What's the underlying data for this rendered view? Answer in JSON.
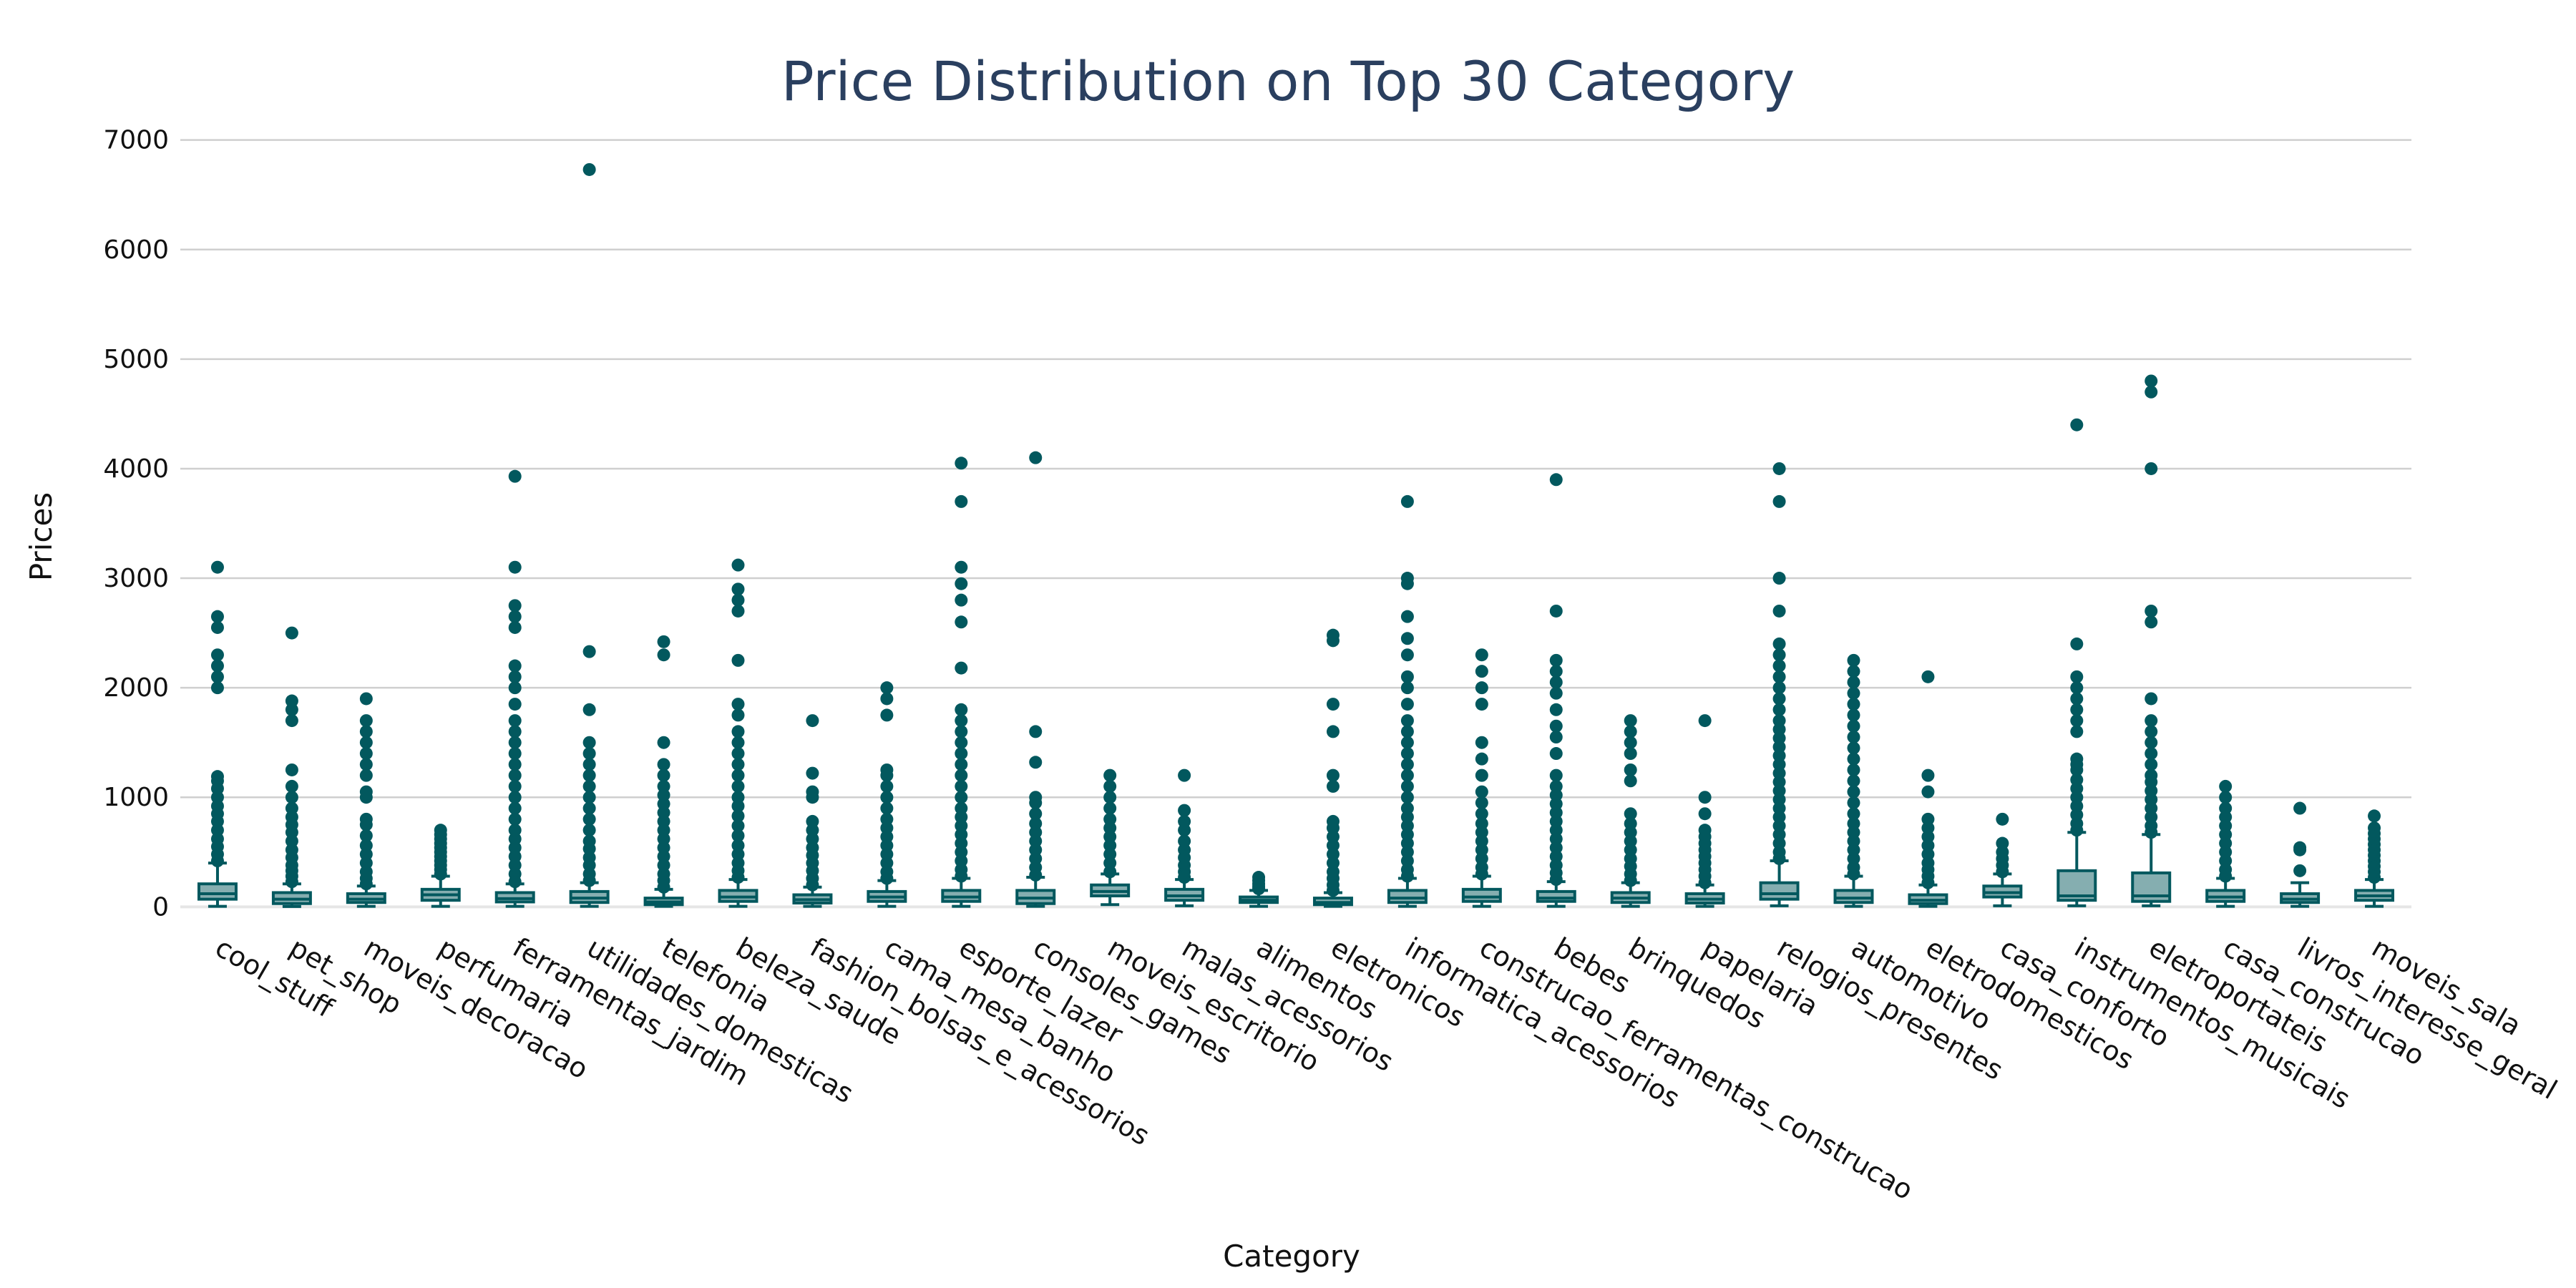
{
  "chart_data": {
    "type": "box",
    "title": "Price Distribution on Top 30 Category",
    "xlabel": "Category",
    "ylabel": "Prices",
    "ylim": [
      -50,
      7050
    ],
    "yticks": [
      0,
      1000,
      2000,
      3000,
      4000,
      5000,
      6000,
      7000
    ],
    "grid": true,
    "legend": "none",
    "colors": {
      "line": "#02585e",
      "fill": "#85aeb0",
      "text": "#2a3f5f"
    },
    "categories": [
      "cool_stuff",
      "pet_shop",
      "moveis_decoracao",
      "perfumaria",
      "ferramentas_jardim",
      "utilidades_domesticas",
      "telefonia",
      "beleza_saude",
      "fashion_bolsas_e_acessorios",
      "cama_mesa_banho",
      "esporte_lazer",
      "consoles_games",
      "moveis_escritorio",
      "malas_acessorios",
      "alimentos",
      "eletronicos",
      "informatica_acessorios",
      "construcao_ferramentas_construcao",
      "bebes",
      "brinquedos",
      "papelaria",
      "relogios_presentes",
      "automotivo",
      "eletrodomesticos",
      "casa_conforto",
      "instrumentos_musicais",
      "eletroportateis",
      "casa_construcao",
      "livros_interesse_geral",
      "moveis_sala"
    ],
    "boxes": [
      {
        "min": 5,
        "q1": 70,
        "median": 120,
        "q3": 210,
        "upper_fence": 400,
        "outliers": [
          420,
          480,
          550,
          620,
          700,
          780,
          850,
          920,
          1000,
          1080,
          1150,
          1190,
          2000,
          2100,
          2200,
          2300,
          2550,
          2650,
          3100
        ]
      },
      {
        "min": 3,
        "q1": 30,
        "median": 70,
        "q3": 130,
        "upper_fence": 210,
        "outliers": [
          230,
          280,
          330,
          380,
          450,
          520,
          600,
          680,
          750,
          820,
          900,
          1000,
          1100,
          1250,
          1700,
          1800,
          1880,
          2500
        ]
      },
      {
        "min": 5,
        "q1": 40,
        "median": 70,
        "q3": 120,
        "upper_fence": 190,
        "outliers": [
          210,
          260,
          320,
          400,
          480,
          560,
          650,
          750,
          800,
          1000,
          1050,
          1200,
          1300,
          1400,
          1500,
          1600,
          1700,
          1900
        ]
      },
      {
        "min": 5,
        "q1": 60,
        "median": 110,
        "q3": 160,
        "upper_fence": 280,
        "outliers": [
          300,
          340,
          380,
          420,
          460,
          500,
          540,
          580,
          620,
          660,
          700
        ]
      },
      {
        "min": 5,
        "q1": 45,
        "median": 75,
        "q3": 130,
        "upper_fence": 210,
        "outliers": [
          230,
          300,
          380,
          460,
          540,
          620,
          700,
          800,
          900,
          1000,
          1100,
          1200,
          1300,
          1400,
          1500,
          1600,
          1700,
          1850,
          2000,
          2100,
          2200,
          2550,
          2650,
          2750,
          3100,
          3930
        ]
      },
      {
        "min": 5,
        "q1": 40,
        "median": 80,
        "q3": 140,
        "upper_fence": 220,
        "outliers": [
          240,
          300,
          380,
          450,
          530,
          600,
          700,
          800,
          900,
          1000,
          1100,
          1200,
          1300,
          1400,
          1500,
          1800,
          2330,
          6730
        ]
      },
      {
        "min": 5,
        "q1": 20,
        "median": 45,
        "q3": 80,
        "upper_fence": 160,
        "outliers": [
          180,
          240,
          300,
          380,
          460,
          540,
          620,
          700,
          780,
          860,
          940,
          1020,
          1100,
          1200,
          1300,
          1500,
          2300,
          2420
        ]
      },
      {
        "min": 5,
        "q1": 50,
        "median": 90,
        "q3": 150,
        "upper_fence": 250,
        "outliers": [
          270,
          330,
          400,
          480,
          560,
          650,
          740,
          830,
          920,
          1000,
          1100,
          1200,
          1300,
          1400,
          1500,
          1600,
          1750,
          1850,
          2250,
          2700,
          2800,
          2900,
          3120
        ]
      },
      {
        "min": 5,
        "q1": 35,
        "median": 65,
        "q3": 110,
        "upper_fence": 180,
        "outliers": [
          200,
          260,
          330,
          400,
          470,
          540,
          620,
          700,
          780,
          1000,
          1050,
          1220,
          1700
        ]
      },
      {
        "min": 5,
        "q1": 50,
        "median": 90,
        "q3": 140,
        "upper_fence": 240,
        "outliers": [
          260,
          320,
          400,
          480,
          560,
          640,
          720,
          800,
          900,
          1000,
          1100,
          1200,
          1250,
          1750,
          1900,
          2000
        ]
      },
      {
        "min": 5,
        "q1": 50,
        "median": 90,
        "q3": 150,
        "upper_fence": 260,
        "outliers": [
          280,
          340,
          420,
          500,
          580,
          660,
          740,
          820,
          900,
          1000,
          1100,
          1200,
          1300,
          1400,
          1500,
          1600,
          1700,
          1800,
          2180,
          2600,
          2800,
          2950,
          3100,
          3700,
          4050
        ]
      },
      {
        "min": 5,
        "q1": 30,
        "median": 80,
        "q3": 150,
        "upper_fence": 270,
        "outliers": [
          290,
          360,
          440,
          520,
          600,
          680,
          760,
          850,
          950,
          1000,
          1320,
          1600,
          4100
        ]
      },
      {
        "min": 20,
        "q1": 100,
        "median": 140,
        "q3": 200,
        "upper_fence": 300,
        "outliers": [
          320,
          400,
          480,
          560,
          640,
          720,
          800,
          900,
          1000,
          1100,
          1200
        ]
      },
      {
        "min": 10,
        "q1": 60,
        "median": 100,
        "q3": 160,
        "upper_fence": 250,
        "outliers": [
          270,
          320,
          380,
          450,
          520,
          600,
          700,
          780,
          880,
          1200
        ]
      },
      {
        "min": 5,
        "q1": 40,
        "median": 60,
        "q3": 90,
        "upper_fence": 150,
        "outliers": [
          165,
          185,
          210,
          240,
          270
        ]
      },
      {
        "min": 5,
        "q1": 20,
        "median": 40,
        "q3": 80,
        "upper_fence": 130,
        "outliers": [
          150,
          200,
          260,
          320,
          400,
          480,
          560,
          640,
          720,
          780,
          1100,
          1200,
          1600,
          1850,
          2430,
          2480
        ]
      },
      {
        "min": 5,
        "q1": 40,
        "median": 80,
        "q3": 150,
        "upper_fence": 260,
        "outliers": [
          280,
          340,
          420,
          500,
          580,
          660,
          740,
          820,
          900,
          1000,
          1100,
          1200,
          1300,
          1400,
          1500,
          1600,
          1700,
          1850,
          2000,
          2100,
          2300,
          2450,
          2650,
          2950,
          3000,
          3700
        ]
      },
      {
        "min": 5,
        "q1": 50,
        "median": 90,
        "q3": 160,
        "upper_fence": 280,
        "outliers": [
          300,
          360,
          440,
          520,
          600,
          680,
          760,
          850,
          950,
          1050,
          1200,
          1350,
          1500,
          1850,
          2000,
          2150,
          2300
        ]
      },
      {
        "min": 5,
        "q1": 50,
        "median": 80,
        "q3": 140,
        "upper_fence": 230,
        "outliers": [
          250,
          310,
          380,
          460,
          540,
          620,
          700,
          780,
          860,
          940,
          1020,
          1100,
          1200,
          1400,
          1550,
          1650,
          1800,
          1950,
          2050,
          2150,
          2250,
          2700,
          3900
        ]
      },
      {
        "min": 5,
        "q1": 40,
        "median": 80,
        "q3": 130,
        "upper_fence": 220,
        "outliers": [
          240,
          300,
          370,
          440,
          520,
          600,
          680,
          760,
          850,
          1150,
          1250,
          1400,
          1500,
          1600,
          1700
        ]
      },
      {
        "min": 5,
        "q1": 35,
        "median": 70,
        "q3": 120,
        "upper_fence": 200,
        "outliers": [
          220,
          280,
          340,
          400,
          460,
          520,
          580,
          640,
          700,
          850,
          1000,
          1700
        ]
      },
      {
        "min": 10,
        "q1": 70,
        "median": 120,
        "q3": 220,
        "upper_fence": 420,
        "outliers": [
          440,
          500,
          580,
          660,
          740,
          820,
          900,
          980,
          1060,
          1140,
          1220,
          1300,
          1380,
          1460,
          1540,
          1620,
          1700,
          1800,
          1900,
          2000,
          2100,
          2200,
          2300,
          2400,
          2700,
          3000,
          3700,
          4000
        ]
      },
      {
        "min": 5,
        "q1": 40,
        "median": 80,
        "q3": 150,
        "upper_fence": 280,
        "outliers": [
          300,
          360,
          440,
          520,
          600,
          680,
          760,
          850,
          950,
          1050,
          1150,
          1250,
          1350,
          1450,
          1550,
          1650,
          1750,
          1850,
          1950,
          2050,
          2150,
          2250
        ]
      },
      {
        "min": 5,
        "q1": 30,
        "median": 60,
        "q3": 110,
        "upper_fence": 200,
        "outliers": [
          220,
          280,
          340,
          400,
          480,
          560,
          640,
          720,
          800,
          1050,
          1200,
          2100
        ]
      },
      {
        "min": 10,
        "q1": 90,
        "median": 130,
        "q3": 190,
        "upper_fence": 300,
        "outliers": [
          320,
          380,
          440,
          500,
          580,
          800
        ]
      },
      {
        "min": 10,
        "q1": 60,
        "median": 100,
        "q3": 330,
        "upper_fence": 680,
        "outliers": [
          700,
          760,
          840,
          920,
          1000,
          1080,
          1160,
          1250,
          1300,
          1350,
          1600,
          1700,
          1800,
          1900,
          2000,
          2100,
          2400,
          4400
        ]
      },
      {
        "min": 10,
        "q1": 50,
        "median": 100,
        "q3": 310,
        "upper_fence": 660,
        "outliers": [
          680,
          740,
          820,
          900,
          980,
          1060,
          1140,
          1200,
          1300,
          1400,
          1500,
          1600,
          1700,
          1900,
          2600,
          2700,
          4000,
          4700,
          4800
        ]
      },
      {
        "min": 5,
        "q1": 50,
        "median": 90,
        "q3": 150,
        "upper_fence": 260,
        "outliers": [
          280,
          340,
          420,
          500,
          580,
          660,
          740,
          820,
          900,
          1000,
          1100
        ]
      },
      {
        "min": 5,
        "q1": 40,
        "median": 70,
        "q3": 120,
        "upper_fence": 220,
        "outliers": [
          330,
          520,
          540,
          900
        ]
      },
      {
        "min": 5,
        "q1": 60,
        "median": 100,
        "q3": 150,
        "upper_fence": 250,
        "outliers": [
          270,
          320,
          370,
          420,
          470,
          520,
          570,
          620,
          670,
          720,
          830
        ]
      }
    ]
  }
}
